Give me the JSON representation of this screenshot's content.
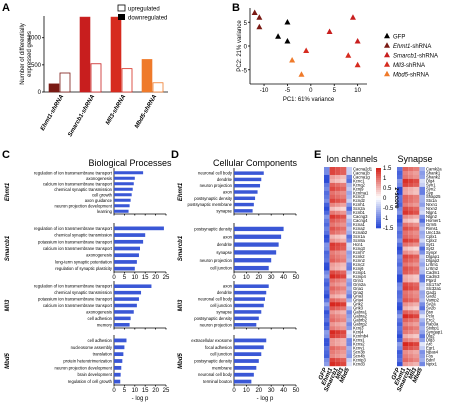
{
  "panels": {
    "a": "A",
    "b": "B",
    "c": "C",
    "d": "D",
    "e": "E"
  },
  "colors": {
    "ehmt1": "#7a1a14",
    "smarcb1": "#c81e1e",
    "mll3": "#d62b1f",
    "mbd5": "#ef7a2a",
    "gfp": "#000000",
    "go_bar": "#3a57d6",
    "heat_high": "#d7261e",
    "heat_mid": "#ffffff",
    "heat_low": "#2b4bd6"
  },
  "chart_data": [
    {
      "type": "bar",
      "panel": "A",
      "ylabel": "Number of differentially expressed genes",
      "ylim": [
        0,
        1400
      ],
      "yticks": [
        "0",
        "500",
        "1000"
      ],
      "categories": [
        "Ehmt1-shRNA",
        "Smarcb1-shRNA",
        "Mll3-shRNA",
        "Mbd5-shRNA"
      ],
      "series": [
        {
          "name": "upregulated",
          "values": [
            350,
            520,
            430,
            170
          ]
        },
        {
          "name": "downregulated",
          "values": [
            150,
            1380,
            1380,
            600
          ]
        }
      ],
      "legend": "top-right"
    },
    {
      "type": "scatter",
      "panel": "B",
      "xlabel": "PC1: 61% variance",
      "ylabel": "PC2: 21% variance",
      "xticks": [
        "-10",
        "-5",
        "0",
        "5",
        "10"
      ],
      "yticks": [
        "-5",
        "0",
        "5"
      ],
      "xlim": [
        -13,
        12
      ],
      "ylim": [
        -8,
        8
      ],
      "series": [
        {
          "name": "GFP",
          "color": "#000000",
          "points": [
            [
              -7,
              2
            ],
            [
              -5,
              5
            ],
            [
              -5,
              1
            ]
          ]
        },
        {
          "name": "Ehmt1-shRNA",
          "color": "#7a1a14",
          "points": [
            [
              -12,
              7
            ],
            [
              -11,
              4
            ],
            [
              -11,
              6
            ]
          ]
        },
        {
          "name": "Smarcb1-shRNA",
          "color": "#c81e1e",
          "points": [
            [
              4,
              3
            ],
            [
              9,
              6
            ],
            [
              10,
              1
            ]
          ]
        },
        {
          "name": "Mll3-shRNA",
          "color": "#d62b1f",
          "points": [
            [
              -1,
              -1
            ],
            [
              8,
              -2
            ],
            [
              10,
              -4
            ]
          ]
        },
        {
          "name": "Mbd5-shRNA",
          "color": "#ef7a2a",
          "points": [
            [
              -4,
              -3
            ],
            [
              -2,
              -6
            ]
          ]
        }
      ],
      "legend": "right"
    },
    {
      "type": "bar",
      "panel": "C",
      "title": "Biological Processes",
      "xlabel": "- log p",
      "xticks": [
        "0",
        "5",
        "10",
        "15",
        "20",
        "25"
      ],
      "xlim": [
        0,
        25
      ],
      "groups": [
        {
          "name": "Ehmt1",
          "categories": [
            "regulation of ion transmembrane transport",
            "axonogenesis",
            "calcium ion transmembrane transport",
            "chemical synaptic transmission",
            "cell growth",
            "axon guidance",
            "neuron projection development",
            "learning"
          ],
          "values": [
            14,
            10,
            9.5,
            9,
            8.5,
            8,
            7.5,
            7
          ]
        },
        {
          "name": "Smarcb1",
          "categories": [
            "regulation of ion transmembrane transport",
            "chemical synaptic transmission",
            "potassium ion transmembrane transport",
            "calcium ion transmembrane transport",
            "axonogenesis",
            "long-term synaptic potentiation",
            "regulation of synaptic plasticity"
          ],
          "values": [
            24,
            15,
            14,
            12.5,
            12,
            11,
            10
          ]
        },
        {
          "name": "Mll3",
          "categories": [
            "regulation of ion transmembrane transport",
            "chemical synaptic transmission",
            "potassium ion transmembrane transport",
            "calcium ion transmembrane transport",
            "axonogenesis",
            "cell adhesion",
            "memory"
          ],
          "values": [
            18,
            13,
            12,
            11,
            9.5,
            8,
            7.5
          ]
        },
        {
          "name": "Mbd5",
          "categories": [
            "cell adhesion",
            "nucleosome assembly",
            "translation",
            "protein heterotrimerization",
            "neuron projection development",
            "brain development",
            "regulation of cell growth"
          ],
          "values": [
            6,
            5,
            4.5,
            4,
            3.5,
            3.2,
            3
          ]
        }
      ]
    },
    {
      "type": "bar",
      "panel": "D",
      "title": "Cellular Components",
      "xlabel": "- log p",
      "xticks": [
        "0",
        "10",
        "20",
        "30",
        "40",
        "50"
      ],
      "xlim": [
        0,
        50
      ],
      "groups": [
        {
          "name": "Ehmt1",
          "categories": [
            "neuronal cell body",
            "dendrite",
            "neuron projection",
            "axon",
            "postsynaptic density",
            "postsynaptic membrane",
            "synapse"
          ],
          "values": [
            24,
            22,
            21,
            19,
            17,
            16,
            15
          ]
        },
        {
          "name": "Smarcb1",
          "categories": [
            "postsynaptic density",
            "axon",
            "dendrite",
            "synapse",
            "neuron projection",
            "cell junction"
          ],
          "values": [
            40,
            38,
            36,
            34,
            30,
            28
          ]
        },
        {
          "name": "Mll3",
          "categories": [
            "axon",
            "dendrite",
            "neuronal cell body",
            "cell junction",
            "synapse",
            "postsynaptic density",
            "neuron projection"
          ],
          "values": [
            28,
            26,
            25,
            24,
            22,
            20,
            18
          ]
        },
        {
          "name": "Mbd5",
          "categories": [
            "extracellular exosome",
            "focal adhesion",
            "cell junction",
            "postsynaptic density",
            "membrane",
            "neuronal cell body",
            "terminal bouton"
          ],
          "values": [
            26,
            24,
            22,
            20,
            18,
            16,
            14
          ]
        }
      ]
    },
    {
      "type": "heatmap",
      "panel": "E",
      "titles": [
        "Ion channels",
        "Synapse"
      ],
      "columns": [
        "GFP",
        "Ehmt1",
        "Smarcb1",
        "Mll3",
        "Mbd5"
      ],
      "colorbar": {
        "label": "z-score",
        "ticks": [
          "1.5",
          "1",
          "0.5",
          "0",
          "-0.5",
          "-1",
          "-1.5"
        ],
        "range": [
          -1.5,
          1.5
        ]
      },
      "ion_genes": [
        "Cacna2d1",
        "Cacna1b",
        "Cacna1g",
        "Kcnc1",
        "Kcnq2",
        "Kcnj9",
        "Kcnma1",
        "Kcnc3",
        "Kcnd2",
        "Kcnh1",
        "Scn2a",
        "Kcnb1",
        "Cacng3",
        "Cacng4",
        "Kcna1",
        "Kcna2",
        "Kcnab2",
        "Scn1a",
        "Scn8a",
        "Hcn1",
        "Kcnq3",
        "Kcnh7",
        "Kcnk2",
        "Kcnn2",
        "Kcnc2",
        "Kcnj6",
        "Kcnip1",
        "Kcnip4",
        "Grin1",
        "Grin2a",
        "Gria1",
        "Gria2",
        "Gria3",
        "Gria4",
        "Grik2",
        "Grik3",
        "Gabra1",
        "Gabra2",
        "Gabrb2",
        "Gabrg2",
        "Kcnj3",
        "Kcnj4",
        "Kcnmb4",
        "Kcns1",
        "Kcns2",
        "Kcnv1",
        "Scn3b",
        "Scn4b",
        "Kcnip3",
        "Kcnd3"
      ],
      "synapse_genes": [
        "Camk2a",
        "Shank1",
        "Shank2",
        "Dlg4",
        "Syn1",
        "Syn2",
        "Syp",
        "Snap25",
        "Stx1a",
        "Nrxn1",
        "Nrxn2",
        "Nlgn1",
        "Nlgn2",
        "Homer1",
        "Grm5",
        "Rims1",
        "Unc13a",
        "Cplx1",
        "Cplx2",
        "Syt1",
        "Syt2",
        "Synpr",
        "Dlgap1",
        "Dlgap2",
        "Lrrtm1",
        "Lrrtm2",
        "Cadm1",
        "Cadm3",
        "Ptprd",
        "Slc17a7",
        "Slc32a1",
        "Gad1",
        "Gad2",
        "Vamp2",
        "Sv2a",
        "Sv2b",
        "Bsn",
        "Pclo",
        "Erc2",
        "Rab3a",
        "Stxbp1",
        "Syngap1",
        "Dlg2",
        "Dlg3",
        "Arc",
        "Egr1",
        "Npas4",
        "Fos",
        "Bdnf",
        "Nptx1"
      ]
    }
  ],
  "ui": {
    "legend_a_up": "upregulated",
    "legend_a_down": "downregulated"
  }
}
